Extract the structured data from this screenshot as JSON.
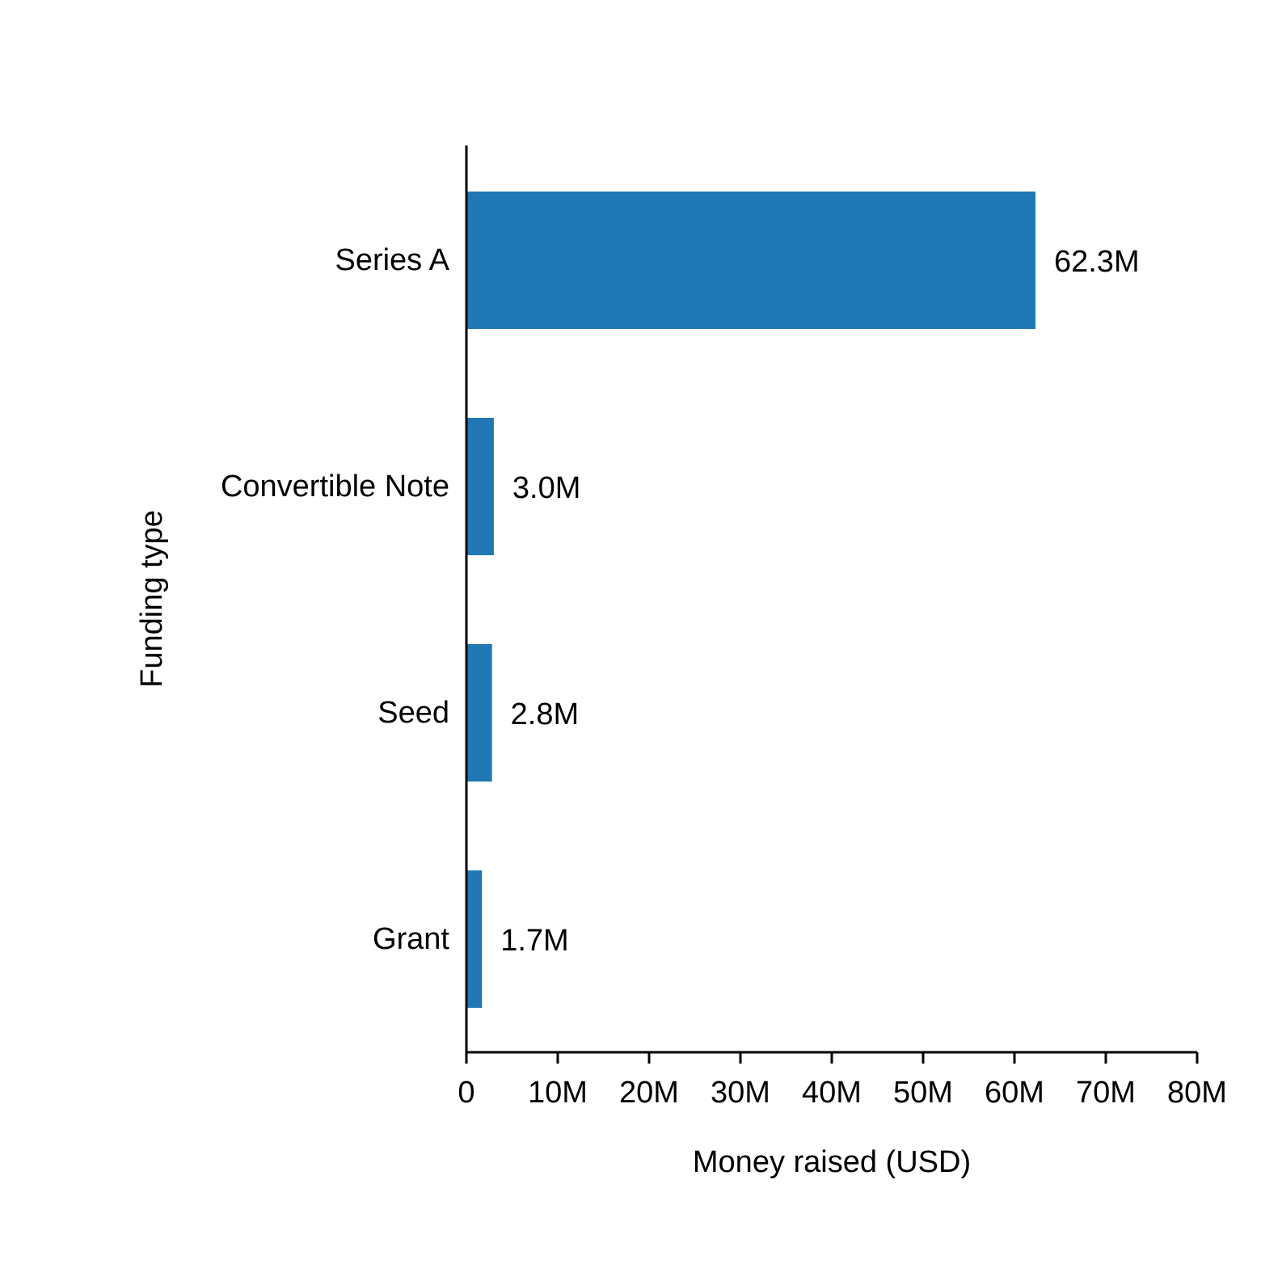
{
  "chart_data": {
    "type": "bar",
    "orientation": "horizontal",
    "categories": [
      "Series A",
      "Convertible Note",
      "Seed",
      "Grant"
    ],
    "values": [
      62.3,
      3.0,
      2.8,
      1.7
    ],
    "value_labels": [
      "62.3M",
      "3.0M",
      "2.8M",
      "1.7M"
    ],
    "unit_multiplier": 1000000,
    "title": "",
    "xlabel": "Money raised (USD)",
    "ylabel": "Funding type",
    "xlim": [
      0,
      80
    ],
    "xticks": [
      0,
      10,
      20,
      30,
      40,
      50,
      60,
      70,
      80
    ],
    "xtick_labels": [
      "0",
      "10M",
      "20M",
      "30M",
      "40M",
      "50M",
      "60M",
      "70M",
      "80M"
    ],
    "grid": false,
    "legend": "none",
    "bar_color": "#1f77b4"
  }
}
